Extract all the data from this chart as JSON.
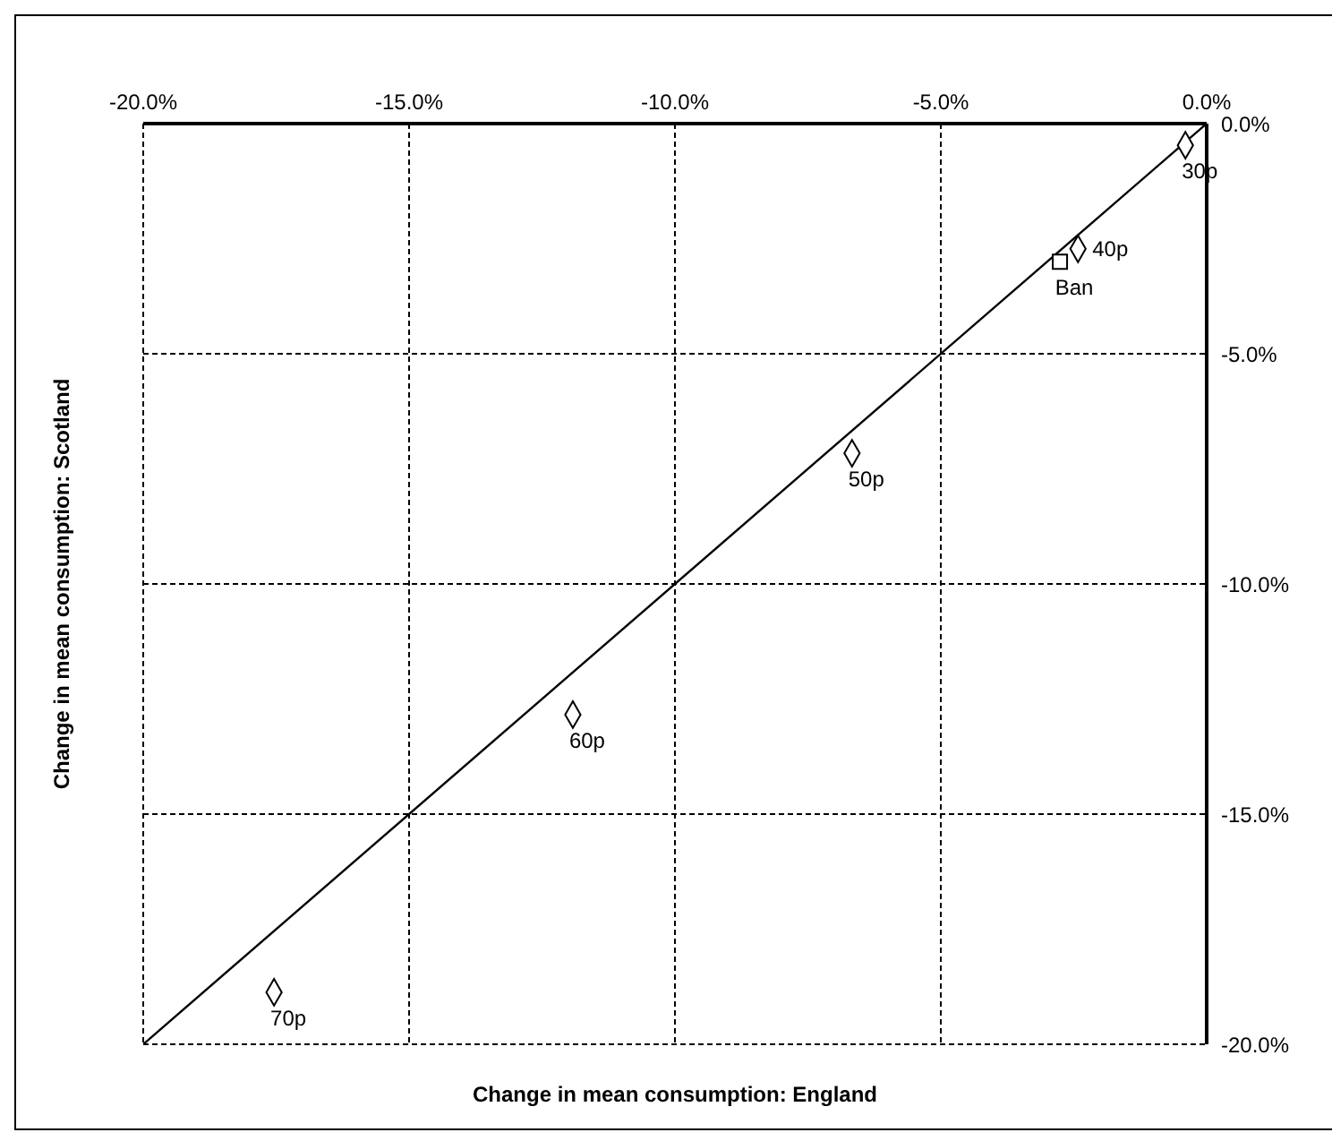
{
  "chart_data": {
    "type": "scatter",
    "xlabel": "Change in mean consumption: England",
    "ylabel": "Change in mean consumption: Scotland",
    "series": [
      {
        "marker": "diamond",
        "color": "#000000",
        "x": [
          -0.4,
          -2.42,
          -6.67,
          -11.92,
          -17.54
        ],
        "values": [
          -0.47,
          -2.72,
          -7.16,
          -12.84,
          -18.87
        ]
      },
      {
        "marker": "square",
        "color": "#000000",
        "x": [
          -2.76
        ],
        "values": [
          -3.0
        ]
      },
      {
        "type": "line",
        "marker": "none",
        "color": "#000000",
        "x": [
          -20,
          0
        ],
        "values": [
          -20,
          0
        ]
      }
    ],
    "annotations": [
      {
        "text": "30p",
        "x": -0.4,
        "y": -0.47
      },
      {
        "text": "40p",
        "x": -2.42,
        "y": -2.72
      },
      {
        "text": "Ban",
        "x": -2.76,
        "y": -3.0
      },
      {
        "text": "50p",
        "x": -6.67,
        "y": -7.16
      },
      {
        "text": "60p",
        "x": -11.92,
        "y": -12.84
      },
      {
        "text": "70p",
        "x": -17.54,
        "y": -18.87
      }
    ],
    "xlim": [
      -20,
      0
    ],
    "ylim": [
      -20,
      0
    ],
    "xticks": [
      {
        "value": -20,
        "label": "-20.0%"
      },
      {
        "value": -15,
        "label": "-15.0%"
      },
      {
        "value": -10,
        "label": "-10.0%"
      },
      {
        "value": -5,
        "label": "-5.0%"
      },
      {
        "value": 0,
        "label": "0.0%"
      }
    ],
    "yticks": [
      {
        "value": -20,
        "label": "-20.0%"
      },
      {
        "value": -15,
        "label": "-15.0%"
      },
      {
        "value": -10,
        "label": "-10.0%"
      },
      {
        "value": -5,
        "label": "-5.0%"
      },
      {
        "value": 0,
        "label": "0.0%"
      }
    ],
    "grid": true
  }
}
